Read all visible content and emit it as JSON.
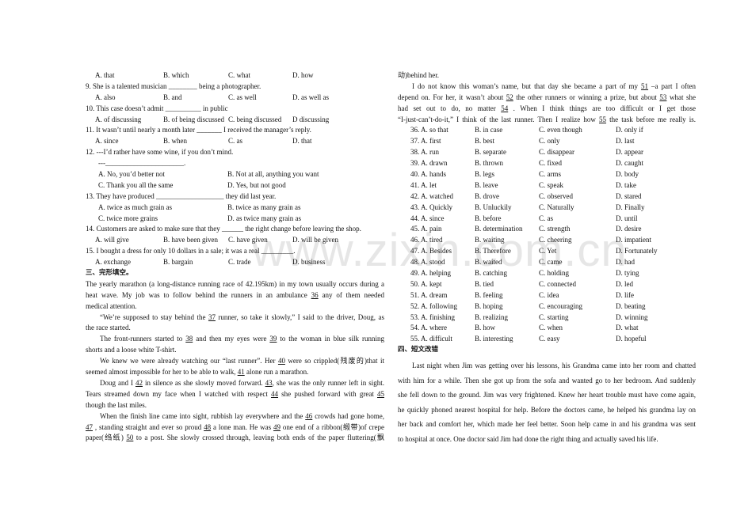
{
  "watermark": "www.zixin.com.cn",
  "left": {
    "questions": [
      {
        "options": [
          "A. that",
          "B. which",
          "C. what",
          "D. how"
        ]
      },
      {
        "stem": "9. She is a talented musician ________ being a photographer.",
        "options": [
          "A. also",
          "B. and",
          "C. as well",
          "D. as well as"
        ]
      },
      {
        "stem": "10. This case doesn’t admit __________ in public",
        "options": [
          "A. of discussing",
          "B. of being discussed",
          "C. being discussed",
          "D discussing"
        ]
      },
      {
        "stem": "11. It wasn’t until nearly a month later _______ I received the manager’s reply.",
        "options": [
          "A. since",
          "B. when",
          "C. as",
          "D. that"
        ]
      },
      {
        "stem": "12. ---I’d rather have some wine, if you don’t mind.",
        "stem2": "---______________________.",
        "options2": [
          "A. No, you’d better not",
          "B. Not at all, anything you want",
          "C. Thank you all the same",
          "D. Yes, but not good"
        ]
      },
      {
        "stem": "13. They have produced ___________________ they did last year.",
        "options2": [
          "A. twice as much grain as",
          "B. twice as many grain as",
          "C. twice more grains",
          "D. as twice many grain as"
        ]
      },
      {
        "stem": "14. Customers are asked to make sure that they ______ the right change before leaving the shop.",
        "options": [
          "A. will give",
          "B. have been given",
          "C. have given",
          "D. will be given"
        ]
      },
      {
        "stem": "15. I bought a dress for only 10 dollars in a sale; it was a real _________.",
        "options": [
          "A. exchange",
          "B. bargain",
          "C. trade",
          "D. business"
        ]
      }
    ],
    "section3_heading": "三、完形填空。",
    "passage_lines": [
      {
        "j": 1,
        "i": 0,
        "s": [
          "The yearly marathon (a long-distance running race of 42.195km) in my town usually occurs during a"
        ]
      },
      {
        "j": 1,
        "i": 0,
        "s": [
          "heat wave. My job was to follow behind the runners in an ambulance ",
          {
            "u": "36"
          },
          " any of them needed"
        ]
      },
      {
        "j": 0,
        "i": 0,
        "s": [
          "medical attention."
        ]
      },
      {
        "j": 1,
        "i": 1,
        "s": [
          "“We’re supposed to stay behind the ",
          {
            "u": "37"
          },
          " runner, so take it slowly,” I said to the driver, Doug, as"
        ]
      },
      {
        "j": 0,
        "i": 0,
        "s": [
          "the race started."
        ]
      },
      {
        "j": 1,
        "i": 1,
        "s": [
          "The front-runners started to ",
          {
            "u": "38"
          },
          " and then my eyes were ",
          {
            "u": "39"
          },
          " to the woman in blue silk running"
        ]
      },
      {
        "j": 0,
        "i": 0,
        "s": [
          "shorts and a loose white T-shirt."
        ]
      },
      {
        "j": 1,
        "i": 1,
        "s": [
          "We knew we were already watching our “last runner”. Her ",
          {
            "u": "40"
          },
          " were so crippled(残废的)that it"
        ]
      },
      {
        "j": 0,
        "i": 0,
        "s": [
          "seemed almost impossible for her to be able to walk, ",
          {
            "u": "41"
          },
          " alone run a marathon."
        ]
      },
      {
        "j": 1,
        "i": 1,
        "s": [
          "Doug and I ",
          {
            "u": "42"
          },
          " in silence as she slowly moved forward. ",
          {
            "u": "43"
          },
          ", she was the only runner left in sight."
        ]
      },
      {
        "j": 1,
        "i": 0,
        "s": [
          "Tears streamed down my face when I watched with respect ",
          {
            "u": "44"
          },
          " she pushed forward with great ",
          {
            "u": "45"
          }
        ]
      },
      {
        "j": 0,
        "i": 0,
        "s": [
          "though the last miles."
        ]
      },
      {
        "j": 1,
        "i": 1,
        "s": [
          "When the finish line came into sight, rubbish lay everywhere and the ",
          {
            "u": "46"
          },
          " crowds had gone home,"
        ]
      },
      {
        "j": 1,
        "i": 0,
        "s": [
          {
            "u": "47"
          },
          " , standing straight and ever so proud ",
          {
            "u": "48"
          },
          " a lone man. He was ",
          {
            "u": "49"
          },
          " one end of a ribbon(缎带)of crepe"
        ]
      },
      {
        "j": 1,
        "i": 0,
        "s": [
          "paper(绉纸) ",
          {
            "u": "50"
          },
          " to a post. She slowly crossed through, leaving both ends of the paper fluttering(飘"
        ]
      }
    ]
  },
  "right": {
    "passage_lines": [
      {
        "j": 0,
        "i": 0,
        "s": [
          "动)behind her."
        ]
      },
      {
        "j": 1,
        "i": 1,
        "s": [
          "I do not know this woman’s name, but that day she became a part of my ",
          {
            "u": "51"
          },
          " –a part I often"
        ]
      },
      {
        "j": 1,
        "i": 0,
        "s": [
          "depend on. For her, it wasn’t about ",
          {
            "u": "52"
          },
          " the other runners or winning a prize, but about ",
          {
            "u": "53"
          },
          " what she"
        ]
      },
      {
        "j": 1,
        "i": 0,
        "s": [
          "had set out to do, no matter ",
          {
            "u": "54"
          },
          " . When I think things are too difficult or I get those"
        ]
      },
      {
        "j": 1,
        "i": 0,
        "s": [
          "“I-just-can’t-do-it,” I think of the last runner. Then I realize how ",
          {
            "u": "55"
          },
          " the task before me really is."
        ]
      }
    ],
    "options": [
      [
        "36. A. so that",
        "B. in case",
        "C. even though",
        "D. only if"
      ],
      [
        "37. A. first",
        "B. best",
        "C. only",
        "D. last"
      ],
      [
        "38. A. run",
        "B. separate",
        "C. disappear",
        "D. appear"
      ],
      [
        "39. A. drawn",
        "B. thrown",
        "C. fixed",
        "D. caught"
      ],
      [
        "40. A. hands",
        "B. legs",
        "C. arms",
        "D. body"
      ],
      [
        "41. A. let",
        "B. leave",
        "C. speak",
        "D. take"
      ],
      [
        "42. A. watched",
        "B. drove",
        "C. observed",
        "D. stared"
      ],
      [
        "43. A. Quickly",
        "B. Unluckily",
        "C. Naturally",
        "D. Finally"
      ],
      [
        "44. A. since",
        "B. before",
        "C. as",
        "D. until"
      ],
      [
        "45. A. pain",
        "B. determination",
        "C. strength",
        "D. desire"
      ],
      [
        "46. A. tired",
        "B. waiting",
        "C. cheering",
        "D. impatient"
      ],
      [
        "47. A. Besides",
        "B. Therefore",
        "C. Yet",
        "D. Fortunately"
      ],
      [
        "48. A. stood",
        "B. waited",
        "C. came",
        "D. had"
      ],
      [
        "49. A. helping",
        "B. catching",
        "C. holding",
        "D. tying"
      ],
      [
        "50. A. kept",
        "B. tied",
        "C. connected",
        "D. led"
      ],
      [
        "51. A. dream",
        "B. feeling",
        "C. idea",
        "D. life"
      ],
      [
        "52. A. following",
        "B. hoping",
        "C. encouraging",
        "D. beating"
      ],
      [
        "53. A. finishing",
        "B. realizing",
        "C. starting",
        "D. winning"
      ],
      [
        "54. A. where",
        "B. how",
        "C. when",
        "D. what"
      ],
      [
        "55. A. difficult",
        "B. interesting",
        "C. easy",
        "D. hopeful"
      ]
    ],
    "section4_heading": "四、短文改错",
    "essay_lines": [
      {
        "j": 1,
        "i": 1,
        "s": [
          "Last night when Jim was getting over his lessons, his Grandma came into her room and chatted"
        ]
      },
      {
        "j": 1,
        "i": 0,
        "s": [
          "with him for a while. Then she got up from the sofa and wanted go to her bedroom. And suddenly"
        ]
      },
      {
        "j": 1,
        "i": 0,
        "s": [
          "she fell down to the ground. Jim was very frightened. Knew her heart trouble must have come again,"
        ]
      },
      {
        "j": 1,
        "i": 0,
        "s": [
          "he quickly phoned nearest hospital for help. Before the doctors came, he helped his grandma lay on"
        ]
      },
      {
        "j": 1,
        "i": 0,
        "s": [
          "her back and comfort her, which made her feel better. Soon help came in and his grandma was sent"
        ]
      },
      {
        "j": 0,
        "i": 0,
        "s": [
          "to hospital at once. One doctor said Jim had done the right thing and actually saved his life."
        ]
      }
    ]
  }
}
